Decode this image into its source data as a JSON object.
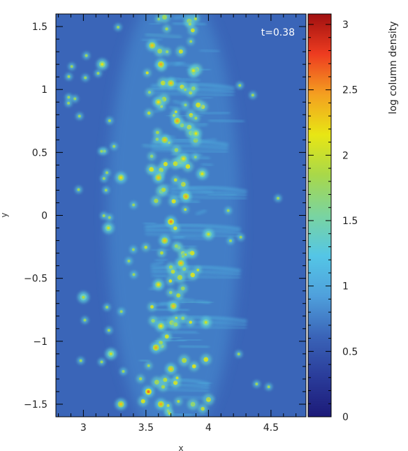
{
  "chart_data": {
    "type": "heatmap",
    "title": "",
    "xlabel": "x",
    "ylabel": "y",
    "xlim": [
      2.78,
      4.78
    ],
    "ylim": [
      -1.6,
      1.6
    ],
    "xticks": [
      3,
      3.5,
      4,
      4.5
    ],
    "xtick_labels": [
      "3",
      "3.5",
      "4",
      "4.5"
    ],
    "yticks": [
      -1.5,
      -1,
      -0.5,
      0,
      0.5,
      1,
      1.5
    ],
    "ytick_labels": [
      "−1.5",
      "−1",
      "−0.5",
      "0",
      "0.5",
      "1",
      "1.5"
    ],
    "annotation": "t=0.38",
    "background_value": 0.62,
    "colorbar": {
      "label": "log column density",
      "range": [
        0,
        3.08
      ],
      "ticks": [
        0,
        0.5,
        1,
        1.5,
        2,
        2.5,
        3
      ],
      "tick_labels": [
        "0",
        "0.5",
        "1",
        "1.5",
        "2",
        "2.5",
        "3"
      ],
      "colormap": [
        "#1c1a78",
        "#2a3c9a",
        "#3a64b8",
        "#4fa0dc",
        "#54c6e6",
        "#7ad4a0",
        "#a8d84a",
        "#e8e614",
        "#f4a020",
        "#ee3c20",
        "#a01010"
      ]
    },
    "clumps": [
      {
        "x": 3.55,
        "y": 1.35,
        "v": 2.0
      },
      {
        "x": 3.62,
        "y": 1.2,
        "v": 2.1
      },
      {
        "x": 3.7,
        "y": 1.05,
        "v": 2.0
      },
      {
        "x": 3.6,
        "y": 0.9,
        "v": 1.9
      },
      {
        "x": 3.75,
        "y": 0.75,
        "v": 2.1
      },
      {
        "x": 3.65,
        "y": 0.6,
        "v": 2.0
      },
      {
        "x": 3.8,
        "y": 0.45,
        "v": 1.9
      },
      {
        "x": 3.6,
        "y": 0.3,
        "v": 2.0
      },
      {
        "x": 3.82,
        "y": 0.15,
        "v": 2.1
      },
      {
        "x": 3.7,
        "y": -0.05,
        "v": 2.2
      },
      {
        "x": 3.65,
        "y": -0.2,
        "v": 2.0
      },
      {
        "x": 3.78,
        "y": -0.38,
        "v": 2.0
      },
      {
        "x": 3.6,
        "y": -0.55,
        "v": 1.9
      },
      {
        "x": 3.72,
        "y": -0.72,
        "v": 2.0
      },
      {
        "x": 3.62,
        "y": -0.88,
        "v": 1.9
      },
      {
        "x": 3.58,
        "y": -1.05,
        "v": 2.1
      },
      {
        "x": 3.7,
        "y": -1.22,
        "v": 2.0
      },
      {
        "x": 3.52,
        "y": -1.4,
        "v": 2.3
      },
      {
        "x": 3.3,
        "y": -1.5,
        "v": 2.0
      },
      {
        "x": 3.62,
        "y": -1.5,
        "v": 2.1
      },
      {
        "x": 3.3,
        "y": 0.3,
        "v": 1.9
      },
      {
        "x": 3.15,
        "y": 1.2,
        "v": 1.8
      },
      {
        "x": 3.2,
        "y": -0.1,
        "v": 1.7
      },
      {
        "x": 3.0,
        "y": -0.65,
        "v": 1.6
      },
      {
        "x": 3.22,
        "y": -1.1,
        "v": 1.7
      },
      {
        "x": 3.95,
        "y": 0.33,
        "v": 1.8
      },
      {
        "x": 4.0,
        "y": -0.15,
        "v": 1.7
      },
      {
        "x": 3.98,
        "y": -0.85,
        "v": 1.7
      },
      {
        "x": 3.88,
        "y": 1.15,
        "v": 1.8
      },
      {
        "x": 3.9,
        "y": 0.65,
        "v": 1.8
      }
    ],
    "filaments": [
      {
        "y": 1.0,
        "x_from": 3.55,
        "x_to": 4.2
      },
      {
        "y": 0.55,
        "x_from": 3.55,
        "x_to": 4.15
      },
      {
        "y": 0.18,
        "x_from": 3.7,
        "x_to": 4.3
      },
      {
        "y": -0.12,
        "x_from": 3.5,
        "x_to": 4.25
      },
      {
        "y": -0.45,
        "x_from": 3.55,
        "x_to": 4.25
      },
      {
        "y": -0.85,
        "x_from": 3.55,
        "x_to": 4.3
      },
      {
        "y": -1.35,
        "x_from": 3.6,
        "x_to": 4.0
      }
    ]
  }
}
